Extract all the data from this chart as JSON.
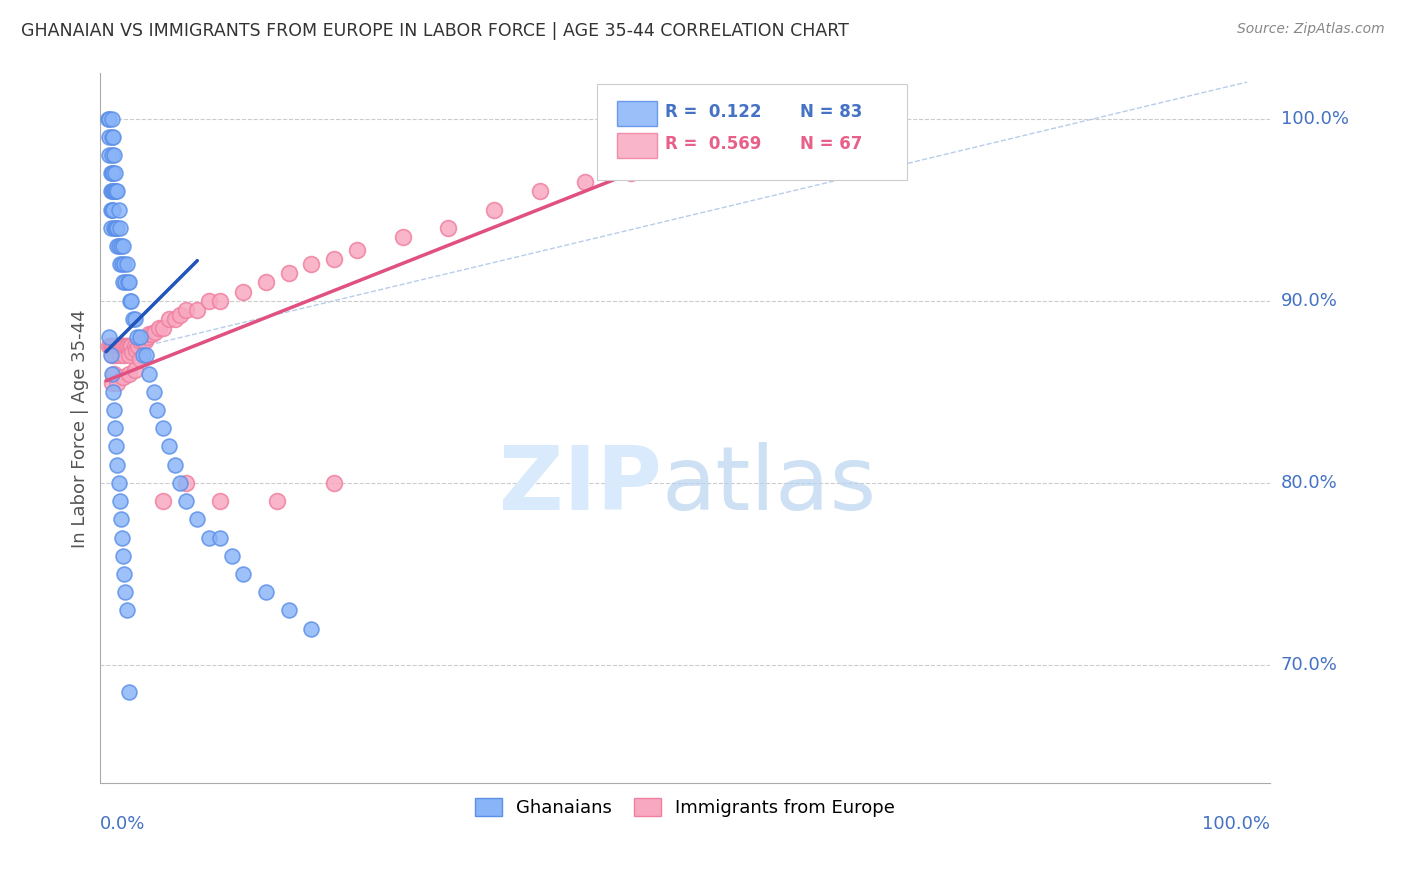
{
  "title": "GHANAIAN VS IMMIGRANTS FROM EUROPE IN LABOR FORCE | AGE 35-44 CORRELATION CHART",
  "source": "Source: ZipAtlas.com",
  "ylabel": "In Labor Force | Age 35-44",
  "ytick_labels": [
    "100.0%",
    "90.0%",
    "80.0%",
    "70.0%"
  ],
  "ytick_values": [
    1.0,
    0.9,
    0.8,
    0.7
  ],
  "xlim": [
    0.0,
    1.0
  ],
  "ylim": [
    0.635,
    1.025
  ],
  "legend_entries": [
    {
      "label_r": "R =  0.122",
      "label_n": "N = 83",
      "color": "#4472C4"
    },
    {
      "label_r": "R =  0.569",
      "label_n": "N = 67",
      "color": "#E8608A"
    }
  ],
  "ghanaian_color_face": "#89B4F8",
  "ghanaian_color_edge": "#5B8FE8",
  "europe_color_face": "#F8A8C0",
  "europe_color_edge": "#F080A0",
  "ghanaian_x": [
    0.002,
    0.003,
    0.003,
    0.003,
    0.004,
    0.004,
    0.004,
    0.004,
    0.005,
    0.005,
    0.005,
    0.005,
    0.005,
    0.005,
    0.006,
    0.006,
    0.006,
    0.006,
    0.007,
    0.007,
    0.007,
    0.008,
    0.008,
    0.008,
    0.009,
    0.009,
    0.01,
    0.01,
    0.01,
    0.011,
    0.011,
    0.012,
    0.012,
    0.013,
    0.014,
    0.015,
    0.015,
    0.016,
    0.017,
    0.018,
    0.019,
    0.02,
    0.021,
    0.022,
    0.024,
    0.025,
    0.027,
    0.03,
    0.032,
    0.035,
    0.038,
    0.042,
    0.045,
    0.05,
    0.055,
    0.06,
    0.065,
    0.07,
    0.08,
    0.09,
    0.1,
    0.11,
    0.12,
    0.14,
    0.16,
    0.18,
    0.003,
    0.004,
    0.005,
    0.006,
    0.007,
    0.008,
    0.009,
    0.01,
    0.011,
    0.012,
    0.013,
    0.014,
    0.015,
    0.016,
    0.017,
    0.018,
    0.02
  ],
  "ghanaian_y": [
    1.0,
    1.0,
    0.99,
    0.98,
    0.97,
    0.96,
    0.95,
    0.94,
    1.0,
    0.99,
    0.98,
    0.97,
    0.96,
    0.95,
    0.99,
    0.97,
    0.96,
    0.95,
    0.98,
    0.96,
    0.94,
    0.97,
    0.96,
    0.94,
    0.96,
    0.94,
    0.96,
    0.94,
    0.93,
    0.95,
    0.93,
    0.94,
    0.92,
    0.93,
    0.92,
    0.93,
    0.91,
    0.92,
    0.91,
    0.92,
    0.91,
    0.91,
    0.9,
    0.9,
    0.89,
    0.89,
    0.88,
    0.88,
    0.87,
    0.87,
    0.86,
    0.85,
    0.84,
    0.83,
    0.82,
    0.81,
    0.8,
    0.79,
    0.78,
    0.77,
    0.77,
    0.76,
    0.75,
    0.74,
    0.73,
    0.72,
    0.88,
    0.87,
    0.86,
    0.85,
    0.84,
    0.83,
    0.82,
    0.81,
    0.8,
    0.79,
    0.78,
    0.77,
    0.76,
    0.75,
    0.74,
    0.73,
    0.685
  ],
  "europe_x": [
    0.003,
    0.004,
    0.005,
    0.005,
    0.005,
    0.006,
    0.007,
    0.008,
    0.009,
    0.01,
    0.011,
    0.012,
    0.013,
    0.014,
    0.015,
    0.016,
    0.017,
    0.018,
    0.019,
    0.02,
    0.021,
    0.022,
    0.023,
    0.025,
    0.026,
    0.028,
    0.03,
    0.032,
    0.034,
    0.036,
    0.038,
    0.04,
    0.043,
    0.046,
    0.05,
    0.055,
    0.06,
    0.065,
    0.07,
    0.08,
    0.09,
    0.1,
    0.12,
    0.14,
    0.16,
    0.18,
    0.2,
    0.22,
    0.26,
    0.3,
    0.34,
    0.38,
    0.42,
    0.46,
    0.5,
    0.005,
    0.007,
    0.01,
    0.015,
    0.02,
    0.025,
    0.03,
    0.05,
    0.07,
    0.1,
    0.15,
    0.2
  ],
  "europe_y": [
    0.875,
    0.875,
    0.875,
    0.875,
    0.87,
    0.875,
    0.875,
    0.87,
    0.875,
    0.875,
    0.875,
    0.87,
    0.875,
    0.875,
    0.875,
    0.87,
    0.875,
    0.875,
    0.875,
    0.87,
    0.875,
    0.875,
    0.872,
    0.875,
    0.873,
    0.875,
    0.878,
    0.878,
    0.878,
    0.88,
    0.882,
    0.882,
    0.883,
    0.885,
    0.885,
    0.89,
    0.89,
    0.892,
    0.895,
    0.895,
    0.9,
    0.9,
    0.905,
    0.91,
    0.915,
    0.92,
    0.923,
    0.928,
    0.935,
    0.94,
    0.95,
    0.96,
    0.965,
    0.97,
    0.975,
    0.855,
    0.86,
    0.855,
    0.858,
    0.86,
    0.862,
    0.868,
    0.79,
    0.8,
    0.79,
    0.79,
    0.8
  ],
  "ghanaian_line_x": [
    0.0,
    0.08
  ],
  "ghanaian_line_y": [
    0.872,
    0.922
  ],
  "europe_line_x": [
    0.0,
    0.5
  ],
  "europe_line_y": [
    0.856,
    0.98
  ],
  "diag_line_x": [
    0.0,
    1.0
  ],
  "diag_line_y": [
    0.87,
    1.02
  ],
  "axis_label_color": "#4472C4",
  "title_color": "#333333",
  "grid_color": "#CCCCCC"
}
